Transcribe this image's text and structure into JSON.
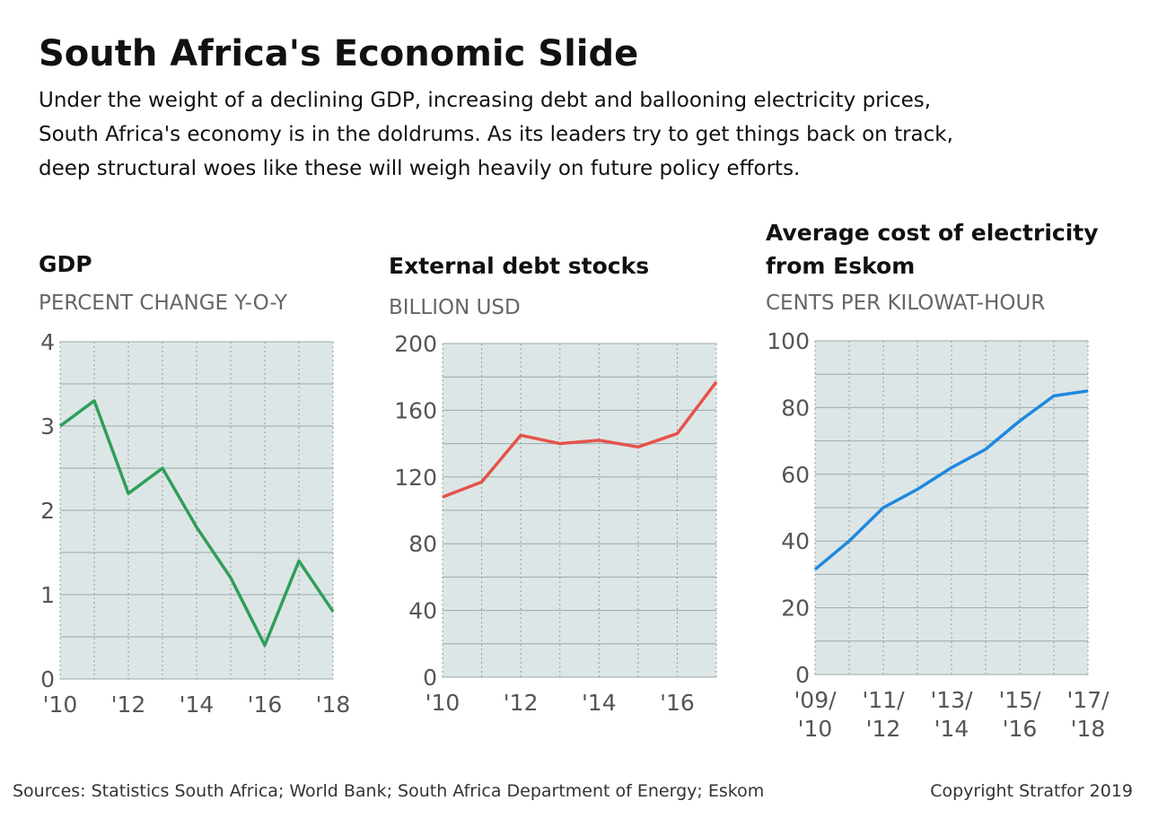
{
  "title": "South Africa's Economic Slide",
  "subtitle": [
    "Under the weight of a declining GDP, increasing debt and ballooning electricity prices,",
    "South Africa's economy is in the doldrums. As its leaders try to get things back on track,",
    "deep structural woes like these will weigh heavily on future policy efforts."
  ],
  "chart_data": [
    {
      "type": "line",
      "title": [
        "GDP"
      ],
      "subtitle": "PERCENT CHANGE Y-O-Y",
      "categories": [
        [
          "'10"
        ],
        null,
        [
          "'12"
        ],
        null,
        [
          "'14"
        ],
        null,
        [
          "'16"
        ],
        null,
        [
          "'18"
        ]
      ],
      "values": [
        3.0,
        3.3,
        2.2,
        2.5,
        1.8,
        1.2,
        0.4,
        1.4,
        0.8
      ],
      "color": "#2f9e5a",
      "ylim": [
        0,
        4
      ],
      "yticks": [
        0,
        1,
        2,
        3,
        4
      ],
      "minor_grid": [
        0.5,
        1.5,
        2.5,
        3.5
      ],
      "grid": true
    },
    {
      "type": "line",
      "title": [
        "External debt stocks"
      ],
      "subtitle": "BILLION USD",
      "categories": [
        [
          "'10"
        ],
        null,
        [
          "'12"
        ],
        null,
        [
          "'14"
        ],
        null,
        [
          "'16"
        ],
        null
      ],
      "values": [
        108,
        117,
        145,
        140,
        142,
        138,
        146,
        177
      ],
      "color": "#e5534b",
      "ylim": [
        0,
        200
      ],
      "yticks": [
        0,
        40,
        80,
        120,
        160,
        200
      ],
      "minor_grid": [
        20,
        60,
        100,
        140,
        180
      ],
      "grid": true
    },
    {
      "type": "line",
      "title": [
        "Average cost of electricity",
        "from Eskom"
      ],
      "subtitle": "CENTS PER KILOWAT-HOUR",
      "categories": [
        [
          "'09/",
          "'10"
        ],
        null,
        [
          "'11/",
          "'12"
        ],
        null,
        [
          "'13/",
          "'14"
        ],
        null,
        [
          "'15/",
          "'16"
        ],
        null,
        [
          "'17/",
          "'18"
        ]
      ],
      "values": [
        31.5,
        40,
        50,
        55.5,
        62,
        67.5,
        76,
        83.5,
        85
      ],
      "color": "#1f88e0",
      "ylim": [
        0,
        100
      ],
      "yticks": [
        0,
        20,
        40,
        60,
        80,
        100
      ],
      "minor_grid": [
        10,
        30,
        50,
        70,
        90
      ],
      "grid": true
    }
  ],
  "source": "Sources: Statistics South Africa; World Bank; South Africa Department of Energy; Eskom",
  "copyright": "Copyright Stratfor 2019"
}
